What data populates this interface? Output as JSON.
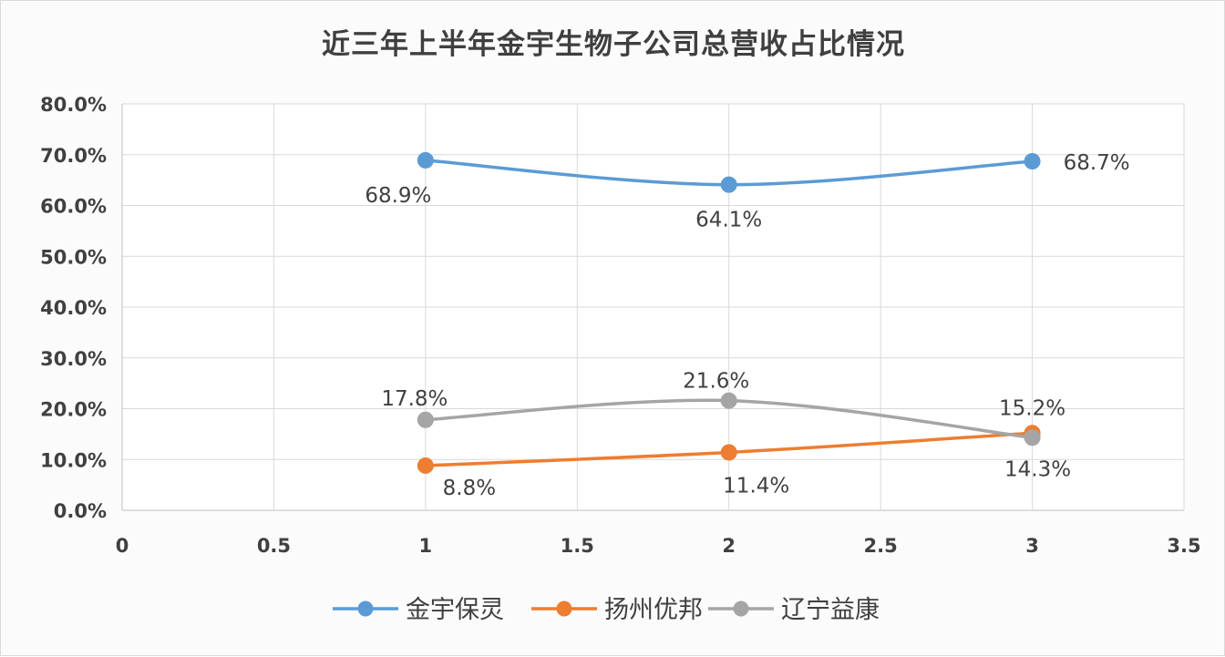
{
  "chart_data": {
    "type": "scatter",
    "title": "近三年上半年金宇生物子公司总营收占比情况",
    "xlabel": "",
    "ylabel": "",
    "xlim": [
      0,
      3.5
    ],
    "ylim": [
      0,
      0.8
    ],
    "x_ticks": [
      "0",
      "0.5",
      "1",
      "1.5",
      "2",
      "2.5",
      "3",
      "3.5"
    ],
    "y_ticks": [
      "0.0%",
      "10.0%",
      "20.0%",
      "30.0%",
      "40.0%",
      "50.0%",
      "60.0%",
      "70.0%",
      "80.0%"
    ],
    "grid": true,
    "legend_position": "bottom",
    "series": [
      {
        "name": "金宇保灵",
        "color": "#5b9bd5",
        "x": [
          1,
          2,
          3
        ],
        "y": [
          0.689,
          0.641,
          0.687
        ],
        "labels": [
          "68.9%",
          "64.1%",
          "68.7%"
        ]
      },
      {
        "name": "扬州优邦",
        "color": "#ed7d31",
        "x": [
          1,
          2,
          3
        ],
        "y": [
          0.088,
          0.114,
          0.152
        ],
        "labels": [
          "8.8%",
          "11.4%",
          "15.2%"
        ]
      },
      {
        "name": "辽宁益康",
        "color": "#a5a5a5",
        "x": [
          1,
          2,
          3
        ],
        "y": [
          0.178,
          0.216,
          0.143
        ],
        "labels": [
          "17.8%",
          "21.6%",
          "14.3%"
        ]
      }
    ]
  }
}
